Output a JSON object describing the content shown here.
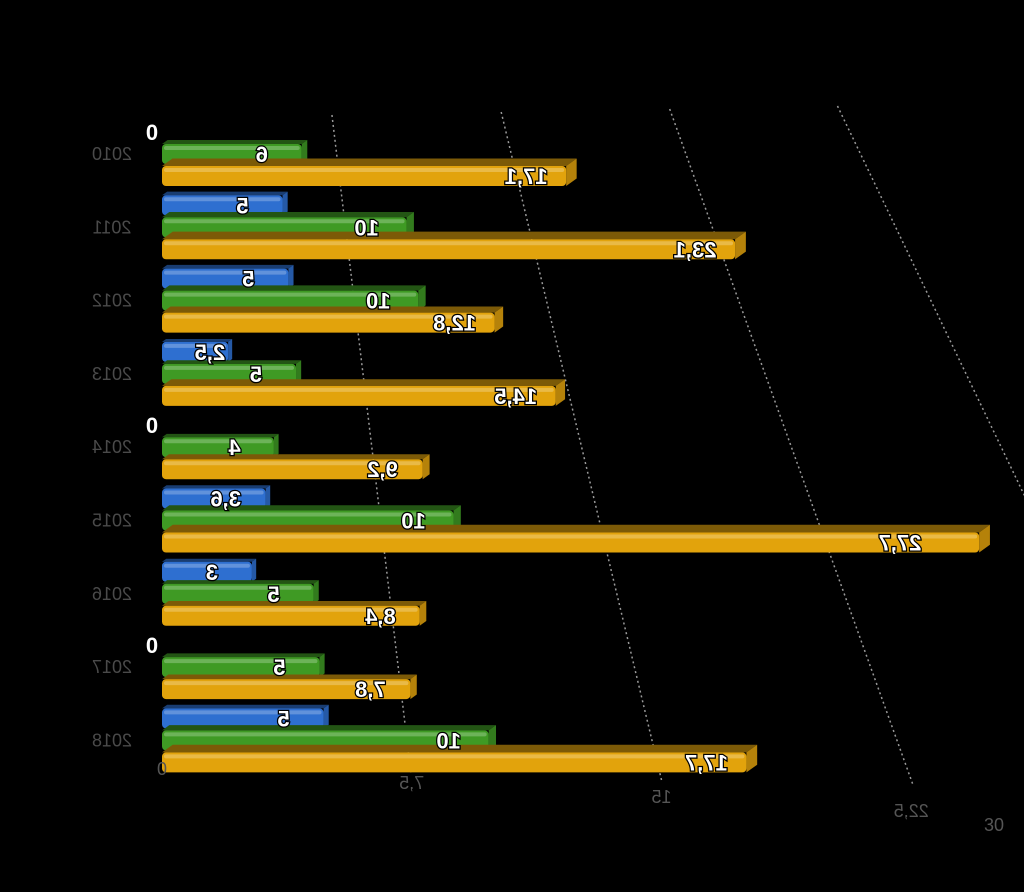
{
  "chart_data": {
    "type": "bar",
    "orientation": "horizontal",
    "categories": [
      "2010",
      "2011",
      "2012",
      "2013",
      "2014",
      "2015",
      "2016",
      "2017",
      "2018"
    ],
    "series": [
      {
        "color": "#2e6fd0",
        "values": [
          0,
          5,
          5,
          2.5,
          0,
          3.6,
          3,
          0,
          5
        ],
        "labels": [
          "0",
          "5",
          "5",
          "2,5",
          "0",
          "3,6",
          "3",
          "0",
          "5"
        ]
      },
      {
        "color": "#3f9a24",
        "values": [
          6,
          10,
          10,
          5,
          4,
          10,
          5,
          5,
          10
        ],
        "labels": [
          "6",
          "10",
          "10",
          "5",
          "4",
          "10",
          "5",
          "5",
          "10"
        ]
      },
      {
        "color": "#e2a30c",
        "values": [
          17.1,
          23.1,
          12.8,
          14.5,
          9.2,
          27.7,
          8.4,
          7.8,
          17.7
        ],
        "labels": [
          "17,1",
          "23,1",
          "12,8",
          "14,5",
          "9,2",
          "27,7",
          "8,4",
          "7,8",
          "17,7"
        ]
      }
    ],
    "x_ticks": [
      "0",
      "7,5",
      "15",
      "22,5",
      "30"
    ],
    "xlim": [
      0,
      30
    ],
    "grid": "vertical dotted",
    "legend": "none"
  }
}
